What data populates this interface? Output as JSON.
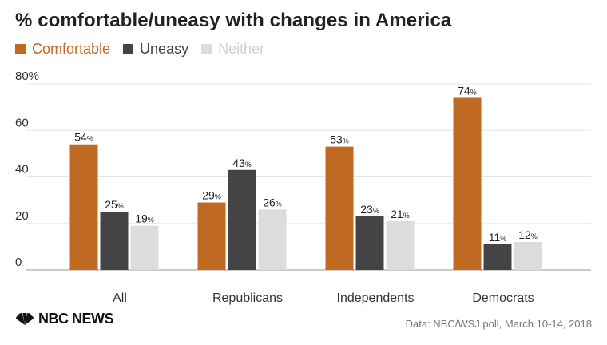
{
  "title": "% comfortable/uneasy with changes in America",
  "source": "Data: NBC/WSJ poll, March 10-14, 2018",
  "logo": {
    "text": "NBC NEWS",
    "icon": "peacock-icon"
  },
  "colors": {
    "comfortable": "#C06A21",
    "uneasy": "#444444",
    "neither": "#DCDCDC",
    "grid": "#E6E6E6",
    "axis": "#999999",
    "text": "#333333"
  },
  "chart_data": {
    "type": "bar",
    "categories": [
      "All",
      "Republicans",
      "Independents",
      "Democrats"
    ],
    "series": [
      {
        "name": "Comfortable",
        "values": [
          54,
          29,
          53,
          74
        ]
      },
      {
        "name": "Uneasy",
        "values": [
          25,
          43,
          23,
          11
        ]
      },
      {
        "name": "Neither",
        "values": [
          19,
          26,
          21,
          12
        ]
      }
    ],
    "ylim": [
      0,
      80
    ],
    "yticks": [
      "80%",
      "60",
      "40",
      "20",
      "0"
    ],
    "value_suffix": "%",
    "grid": true,
    "legend": "top-left"
  }
}
